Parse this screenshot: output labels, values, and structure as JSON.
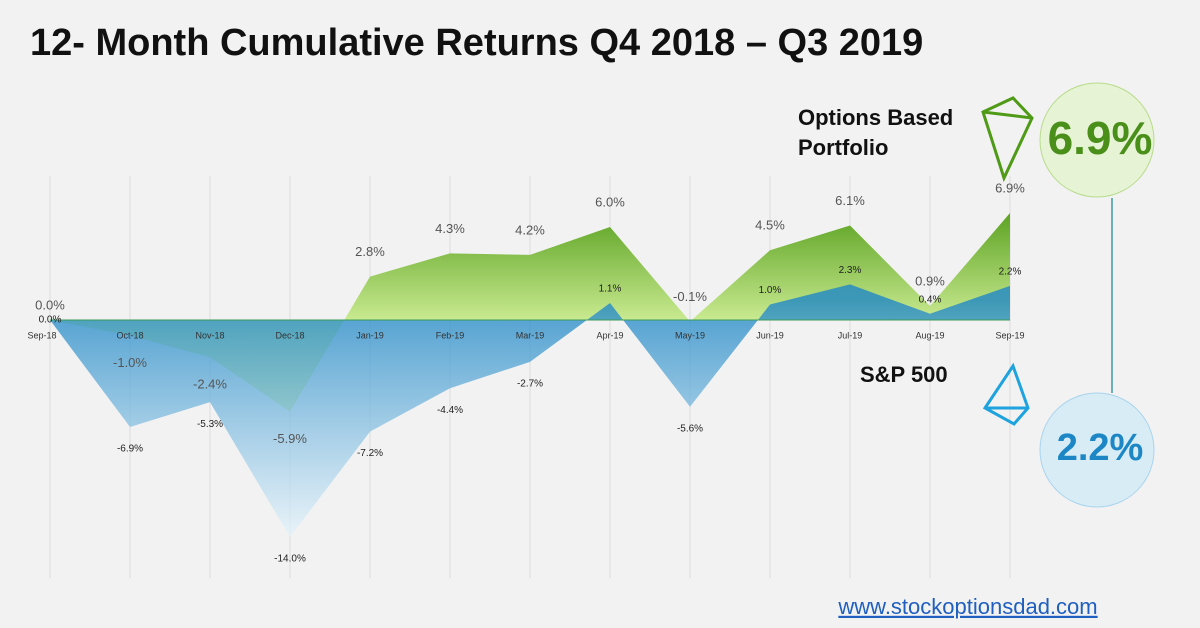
{
  "chart_data": {
    "type": "area",
    "title": "12- Month Cumulative Returns Q4 2018 – Q3 2019",
    "categories": [
      "Sep-18",
      "Oct-18",
      "Nov-18",
      "Dec-18",
      "Jan-19",
      "Feb-19",
      "Mar-19",
      "Apr-19",
      "May-19",
      "Jun-19",
      "Jul-19",
      "Aug-19",
      "Sep-19"
    ],
    "series": [
      {
        "name": "Options Based Portfolio",
        "color": "#4f9a16",
        "values": [
          0.0,
          -1.0,
          -2.4,
          -5.9,
          2.8,
          4.3,
          4.2,
          6.0,
          -0.1,
          4.5,
          6.1,
          0.9,
          6.9
        ],
        "value_labels": [
          "0.0%",
          "-1.0%",
          "-2.4%",
          "-5.9%",
          "2.8%",
          "4.3%",
          "4.2%",
          "6.0%",
          "-0.1%",
          "4.5%",
          "6.1%",
          "0.9%",
          "6.9%"
        ]
      },
      {
        "name": "S&P 500",
        "color": "#1f87c6",
        "values": [
          0.0,
          -6.9,
          -5.3,
          -14.0,
          -7.2,
          -4.4,
          -2.7,
          1.1,
          -5.6,
          1.0,
          2.3,
          0.4,
          2.2
        ],
        "value_labels": [
          "0.0%",
          "-6.9%",
          "-5.3%",
          "-14.0%",
          "-7.2%",
          "-4.4%",
          "-2.7%",
          "1.1%",
          "-5.6%",
          "1.0%",
          "2.3%",
          "0.4%",
          "2.2%"
        ]
      }
    ],
    "ylim": [
      -16,
      8
    ],
    "website": "www.stockoptionsdad.com"
  }
}
